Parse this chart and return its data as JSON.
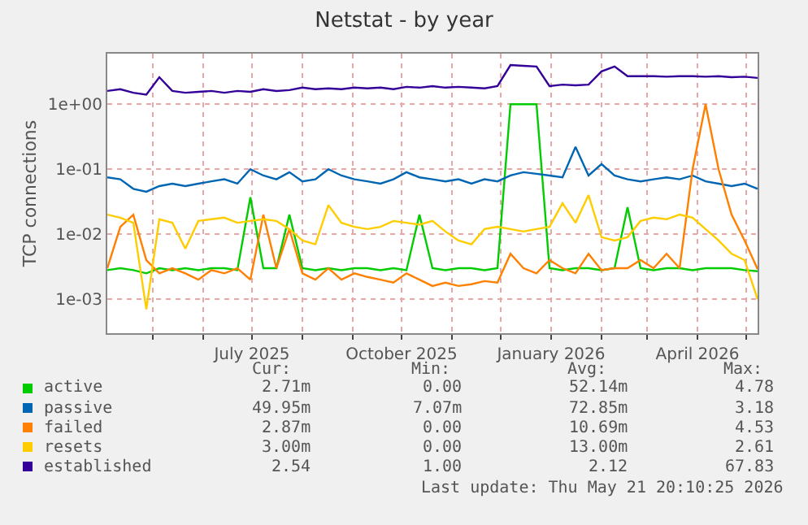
{
  "chart_data": {
    "type": "line",
    "title": "Netstat - by year",
    "ylabel": "TCP connections",
    "x": [
      "2025-04-03",
      "2025-04-11",
      "2025-04-19",
      "2025-04-27",
      "2025-05-05",
      "2025-05-13",
      "2025-05-21",
      "2025-05-29",
      "2025-06-06",
      "2025-06-14",
      "2025-06-22",
      "2025-06-30",
      "2025-07-08",
      "2025-07-16",
      "2025-07-24",
      "2025-08-01",
      "2025-08-09",
      "2025-08-17",
      "2025-08-25",
      "2025-09-02",
      "2025-09-10",
      "2025-09-18",
      "2025-09-26",
      "2025-10-04",
      "2025-10-12",
      "2025-10-20",
      "2025-10-28",
      "2025-11-05",
      "2025-11-13",
      "2025-11-21",
      "2025-11-29",
      "2025-12-07",
      "2025-12-15",
      "2025-12-23",
      "2025-12-31",
      "2026-01-08",
      "2026-01-16",
      "2026-01-24",
      "2026-02-01",
      "2026-02-09",
      "2026-02-17",
      "2026-02-25",
      "2026-03-05",
      "2026-03-13",
      "2026-03-21",
      "2026-03-29",
      "2026-04-06",
      "2026-04-14",
      "2026-04-22",
      "2026-04-30",
      "2026-05-08"
    ],
    "series": [
      {
        "name": "active",
        "color": "#00cc00",
        "values": [
          0.0028,
          0.003,
          0.0028,
          0.0025,
          0.003,
          0.0028,
          0.003,
          0.0028,
          0.003,
          0.003,
          0.0028,
          0.037,
          0.003,
          0.003,
          0.02,
          0.003,
          0.0028,
          0.003,
          0.0028,
          0.003,
          0.003,
          0.0028,
          0.003,
          0.0028,
          0.02,
          0.003,
          0.0028,
          0.003,
          0.003,
          0.0028,
          0.003,
          1.0,
          1.0,
          1.0,
          0.003,
          0.0028,
          0.003,
          0.003,
          0.0028,
          0.003,
          0.026,
          0.003,
          0.0028,
          0.003,
          0.003,
          0.0028,
          0.003,
          0.003,
          0.003,
          0.0028,
          0.0027
        ]
      },
      {
        "name": "passive",
        "color": "#0066b3",
        "values": [
          0.075,
          0.07,
          0.05,
          0.045,
          0.055,
          0.06,
          0.055,
          0.06,
          0.065,
          0.07,
          0.06,
          0.1,
          0.08,
          0.07,
          0.09,
          0.065,
          0.07,
          0.1,
          0.08,
          0.07,
          0.065,
          0.06,
          0.07,
          0.09,
          0.075,
          0.07,
          0.065,
          0.07,
          0.06,
          0.07,
          0.065,
          0.08,
          0.09,
          0.085,
          0.08,
          0.075,
          0.22,
          0.08,
          0.12,
          0.08,
          0.07,
          0.065,
          0.07,
          0.075,
          0.07,
          0.08,
          0.065,
          0.06,
          0.055,
          0.06,
          0.05
        ]
      },
      {
        "name": "failed",
        "color": "#ff8000",
        "values": [
          0.003,
          0.013,
          0.02,
          0.004,
          0.0025,
          0.003,
          0.0025,
          0.002,
          0.0028,
          0.0025,
          0.003,
          0.002,
          0.02,
          0.003,
          0.012,
          0.0025,
          0.002,
          0.003,
          0.002,
          0.0025,
          0.0022,
          0.002,
          0.0018,
          0.0025,
          0.002,
          0.0016,
          0.0018,
          0.0016,
          0.0017,
          0.0019,
          0.0018,
          0.005,
          0.003,
          0.0025,
          0.004,
          0.003,
          0.0025,
          0.005,
          0.0028,
          0.003,
          0.003,
          0.004,
          0.003,
          0.005,
          0.003,
          0.1,
          1.0,
          0.1,
          0.02,
          0.008,
          0.0029
        ]
      },
      {
        "name": "resets",
        "color": "#ffcc00",
        "values": [
          0.02,
          0.018,
          0.015,
          0.0007,
          0.017,
          0.015,
          0.006,
          0.016,
          0.017,
          0.018,
          0.015,
          0.016,
          0.017,
          0.016,
          0.012,
          0.008,
          0.007,
          0.028,
          0.015,
          0.013,
          0.012,
          0.013,
          0.016,
          0.015,
          0.014,
          0.016,
          0.011,
          0.008,
          0.007,
          0.012,
          0.013,
          0.012,
          0.011,
          0.012,
          0.013,
          0.03,
          0.015,
          0.04,
          0.009,
          0.008,
          0.009,
          0.016,
          0.018,
          0.017,
          0.02,
          0.018,
          0.012,
          0.008,
          0.005,
          0.004,
          0.001
        ]
      },
      {
        "name": "established",
        "color": "#330099",
        "values": [
          1.6,
          1.7,
          1.5,
          1.4,
          2.6,
          1.6,
          1.5,
          1.55,
          1.6,
          1.5,
          1.6,
          1.55,
          1.7,
          1.6,
          1.65,
          1.8,
          1.7,
          1.75,
          1.7,
          1.8,
          1.75,
          1.8,
          1.7,
          1.85,
          1.8,
          1.9,
          1.8,
          1.85,
          1.8,
          1.75,
          1.9,
          4.0,
          3.9,
          3.8,
          1.9,
          2.0,
          1.95,
          2.0,
          3.2,
          3.8,
          2.7,
          2.7,
          2.7,
          2.65,
          2.7,
          2.7,
          2.65,
          2.7,
          2.6,
          2.65,
          2.54
        ]
      }
    ],
    "xlim": [
      "2025-04-03",
      "2026-05-08"
    ],
    "xticks": [
      {
        "value": "2025-05-01",
        "label": null
      },
      {
        "value": "2025-06-01",
        "label": null
      },
      {
        "value": "2025-07-01",
        "label": "July 2025"
      },
      {
        "value": "2025-08-01",
        "label": null
      },
      {
        "value": "2025-09-01",
        "label": null
      },
      {
        "value": "2025-10-01",
        "label": "October 2025"
      },
      {
        "value": "2025-11-01",
        "label": null
      },
      {
        "value": "2025-12-01",
        "label": null
      },
      {
        "value": "2026-01-01",
        "label": "January 2026"
      },
      {
        "value": "2026-02-01",
        "label": null
      },
      {
        "value": "2026-03-01",
        "label": null
      },
      {
        "value": "2026-04-01",
        "label": "April 2026"
      },
      {
        "value": "2026-05-01",
        "label": null
      }
    ],
    "ylim": [
      0.0003,
      6
    ],
    "log": true,
    "yticks": [
      {
        "value": 0.001,
        "label": "1e-03"
      },
      {
        "value": 0.01,
        "label": "1e-02"
      },
      {
        "value": 0.1,
        "label": "1e-01"
      },
      {
        "value": 1,
        "label": "1e+00"
      }
    ],
    "grid": true,
    "legend": "bottom",
    "marker": "none",
    "line_style": "solid",
    "annotations": [
      "Cur:",
      "Min:",
      "Avg:",
      "Max:",
      "2.71m",
      "0.00",
      "52.14m",
      "4.78",
      "49.95m",
      "7.07m",
      "72.85m",
      "3.18",
      "2.87m",
      "0.00",
      "10.69m",
      "4.53",
      "3.00m",
      "0.00",
      "13.00m",
      "2.61",
      "2.54",
      "1.00",
      "2.12",
      "67.83",
      "Last update: Thu May 21 20:10:25 2026"
    ]
  }
}
